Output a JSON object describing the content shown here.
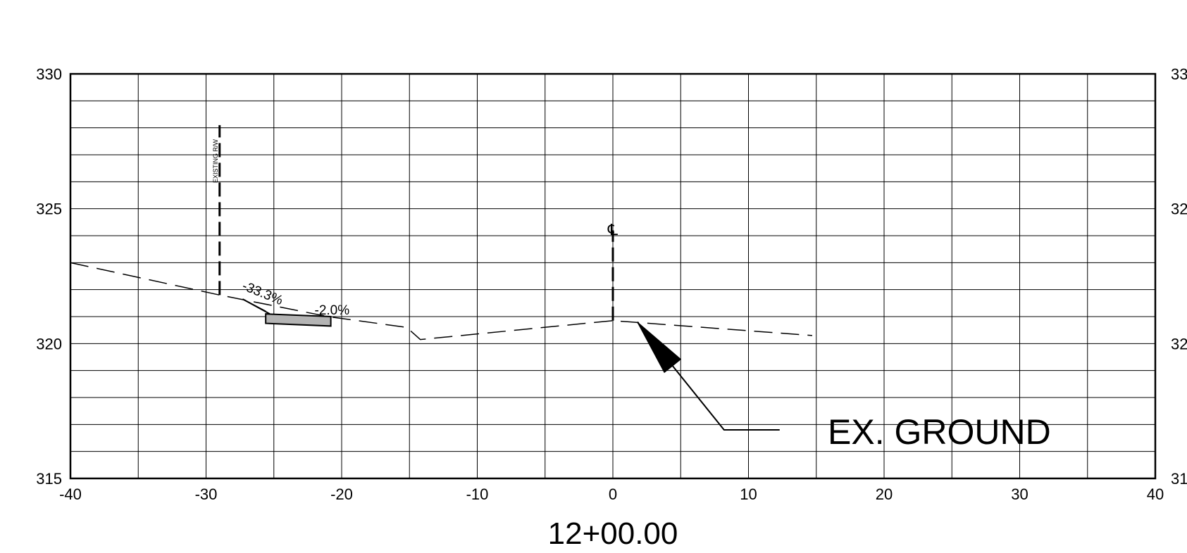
{
  "chart_data": {
    "type": "line",
    "title": "12+00.00",
    "xlabel": "",
    "ylabel": "",
    "xlim": [
      -40,
      40
    ],
    "ylim": [
      315,
      330
    ],
    "x_ticks": [
      "-40",
      "-30",
      "-20",
      "-10",
      "0",
      "10",
      "20",
      "30",
      "40"
    ],
    "y_ticks": [
      "330",
      "325",
      "320",
      "315"
    ],
    "y_ticks_right": [
      "33",
      "32",
      "32",
      "31"
    ],
    "grid": true,
    "series": [
      {
        "style": "dashed",
        "points": [
          [
            -40,
            323.0
          ],
          [
            -29,
            321.8
          ],
          [
            -21,
            321.0
          ],
          [
            -15.2,
            320.6
          ],
          [
            -14.2,
            320.15
          ],
          [
            0,
            320.85
          ],
          [
            14.7,
            320.3
          ]
        ]
      }
    ],
    "proposed_section": {
      "slope_line": [
        [
          -27.3,
          321.65
        ],
        [
          -25.3,
          321.1
        ]
      ],
      "pavement_box": [
        [
          -25.6,
          321.1
        ],
        [
          -20.8,
          320.65
        ]
      ]
    },
    "annotations": {
      "row_label": "EXISTING R/W",
      "row_x": -29,
      "row_y_range": [
        321.8,
        328.1
      ],
      "centerline_symbol": "℄",
      "centerline_x": 0,
      "centerline_y_range": [
        320.85,
        324.2
      ],
      "slope_left": "-33.3%",
      "slope_right": "-2.0%",
      "callout": "EX. GROUND",
      "callout_arrow": [
        [
          1.8,
          320.8
        ],
        [
          8.2,
          316.8
        ],
        [
          12.3,
          316.8
        ]
      ]
    }
  }
}
